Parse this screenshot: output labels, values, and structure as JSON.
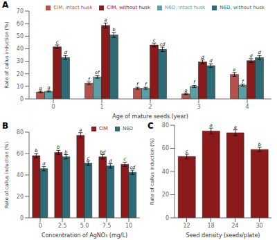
{
  "chart_data": [
    {
      "type": "bar",
      "annotations": [
        "A"
      ],
      "xlabel": "Age of mature seeds (year)",
      "ylabel": "Rate of callus induction (%)",
      "categories": [
        "0",
        "1",
        "2",
        "3",
        "4"
      ],
      "ylim": [
        0,
        70
      ],
      "yticks": [
        0,
        10,
        20,
        30,
        40,
        50,
        60,
        70
      ],
      "legend": "upper right",
      "series": [
        {
          "name": "CIM, intact husk",
          "color": "#b5534a",
          "values": [
            5.5,
            12.5,
            8.5,
            4.0,
            19.5
          ],
          "errors": [
            0.5,
            1.0,
            0.8,
            0.5,
            1.5
          ],
          "letters": [
            "g",
            "f",
            "f",
            "g",
            "e"
          ]
        },
        {
          "name": "N6D, intact husk",
          "color": "#5b9ea6",
          "values": [
            6.0,
            17.5,
            8.5,
            10.0,
            11.0
          ],
          "errors": [
            0.5,
            1.0,
            0.8,
            0.8,
            0.8
          ],
          "letters": [
            "g",
            "ef",
            "f",
            "f",
            "f"
          ]
        },
        {
          "name": "CIM, without husk",
          "color": "#8b1a1a",
          "values": [
            41.5,
            58.5,
            43.0,
            29.5,
            30.5
          ],
          "errors": [
            1.5,
            2.0,
            1.5,
            1.5,
            1.5
          ],
          "letters": [
            "c",
            "a",
            "c",
            "d",
            "d"
          ]
        },
        {
          "name": "N6D, without husk",
          "color": "#2e6b75",
          "values": [
            33.0,
            51.0,
            39.5,
            26.5,
            33.0
          ],
          "errors": [
            1.5,
            2.0,
            1.8,
            1.5,
            1.5
          ],
          "letters": [
            "d",
            "b",
            "cd",
            "d",
            "d"
          ]
        }
      ]
    },
    {
      "type": "bar",
      "annotations": [
        "B"
      ],
      "xlabel": "Concentration of AgNO₃ (mg/L)",
      "ylabel": "Rate of callus induction (%)",
      "categories": [
        "0",
        "2.5",
        "5.0",
        "7.5",
        "10"
      ],
      "ylim": [
        0,
        80
      ],
      "yticks": [
        0,
        20,
        40,
        60,
        80
      ],
      "legend": "upper right",
      "series": [
        {
          "name": "CIM",
          "color": "#8b1a1a",
          "values": [
            58.0,
            61.0,
            77.0,
            57.0,
            50.0
          ],
          "errors": [
            2.0,
            2.0,
            2.5,
            2.0,
            2.0
          ],
          "letters": [
            "b",
            "b",
            "a",
            "bd",
            "c"
          ]
        },
        {
          "name": "N6D",
          "color": "#2e6b75",
          "values": [
            46.0,
            57.0,
            51.0,
            48.5,
            42.5
          ],
          "errors": [
            2.0,
            2.0,
            2.0,
            2.0,
            2.0
          ],
          "letters": [
            "d",
            "b",
            "c",
            "d",
            "cd"
          ]
        }
      ]
    },
    {
      "type": "bar",
      "annotations": [
        "C"
      ],
      "xlabel": "Seed density (seeds/plate)",
      "ylabel": "Rate of callus induction (%)",
      "categories": [
        "12",
        "18",
        "24",
        "30"
      ],
      "ylim": [
        0,
        80
      ],
      "yticks": [
        0,
        20,
        40,
        60,
        80
      ],
      "color": "#8b1a1a",
      "values": [
        53.0,
        75.0,
        73.5,
        59.0
      ],
      "errors": [
        2.0,
        2.5,
        2.5,
        2.0
      ],
      "letters": [
        "c",
        "a",
        "a",
        "b"
      ]
    }
  ]
}
